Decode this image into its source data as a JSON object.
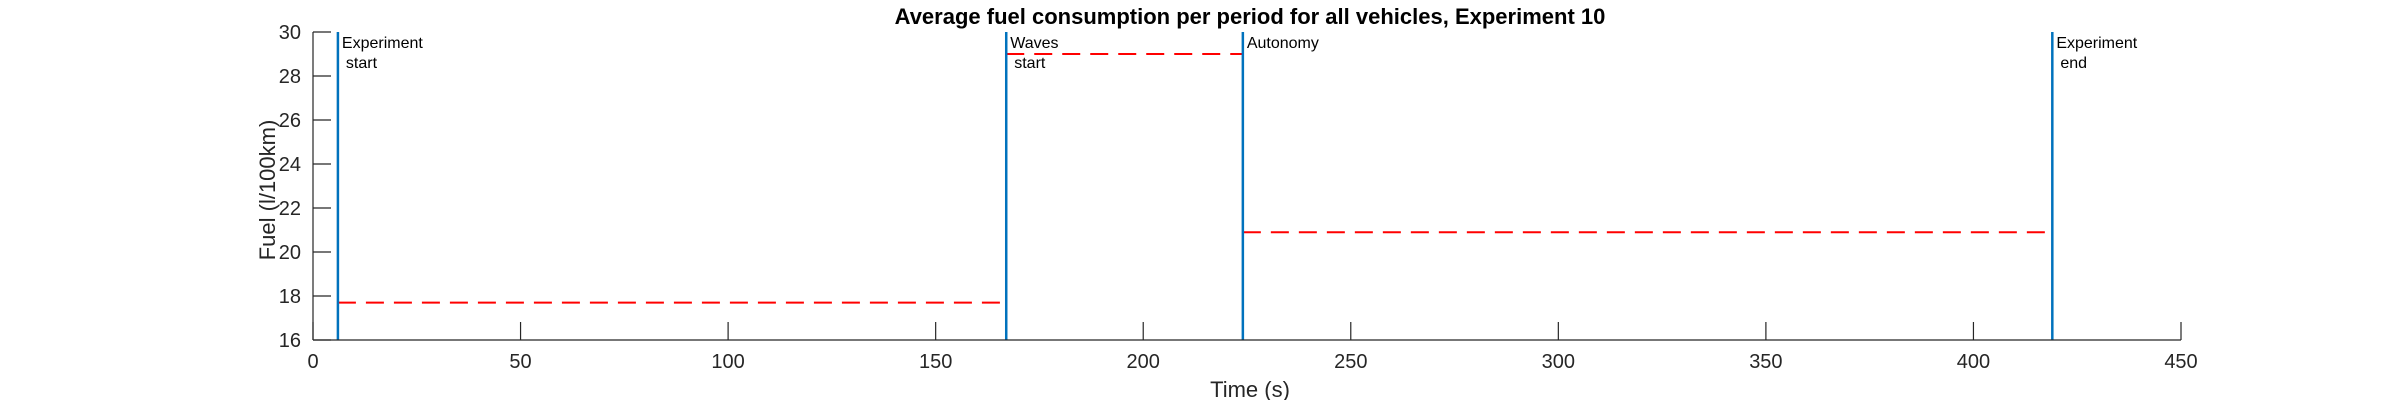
{
  "chart_data": {
    "type": "line",
    "title": "Average fuel consumption per period for all vehicles, Experiment 10",
    "xlabel": "Time (s)",
    "ylabel": "Fuel (l/100km)",
    "xlim": [
      0,
      450
    ],
    "ylim": [
      16,
      30
    ],
    "xticks": [
      0,
      50,
      100,
      150,
      200,
      250,
      300,
      350,
      400,
      450
    ],
    "yticks": [
      16,
      18,
      20,
      22,
      24,
      26,
      28,
      30
    ],
    "grid": false,
    "colors": {
      "event_line": "#0072BD",
      "average_line": "#FF0000",
      "axis": "#262626"
    },
    "events": [
      {
        "x": 6,
        "label": [
          "Experiment",
          "start"
        ]
      },
      {
        "x": 167,
        "label": [
          "Waves",
          "start"
        ]
      },
      {
        "x": 224,
        "label": [
          "Autonomy"
        ]
      },
      {
        "x": 419,
        "label": [
          "Experiment",
          "end"
        ]
      }
    ],
    "segments": [
      {
        "x": [
          6,
          167
        ],
        "y": 17.7
      },
      {
        "x": [
          167,
          224
        ],
        "y": 29.0
      },
      {
        "x": [
          224,
          419
        ],
        "y": 20.9
      }
    ]
  }
}
